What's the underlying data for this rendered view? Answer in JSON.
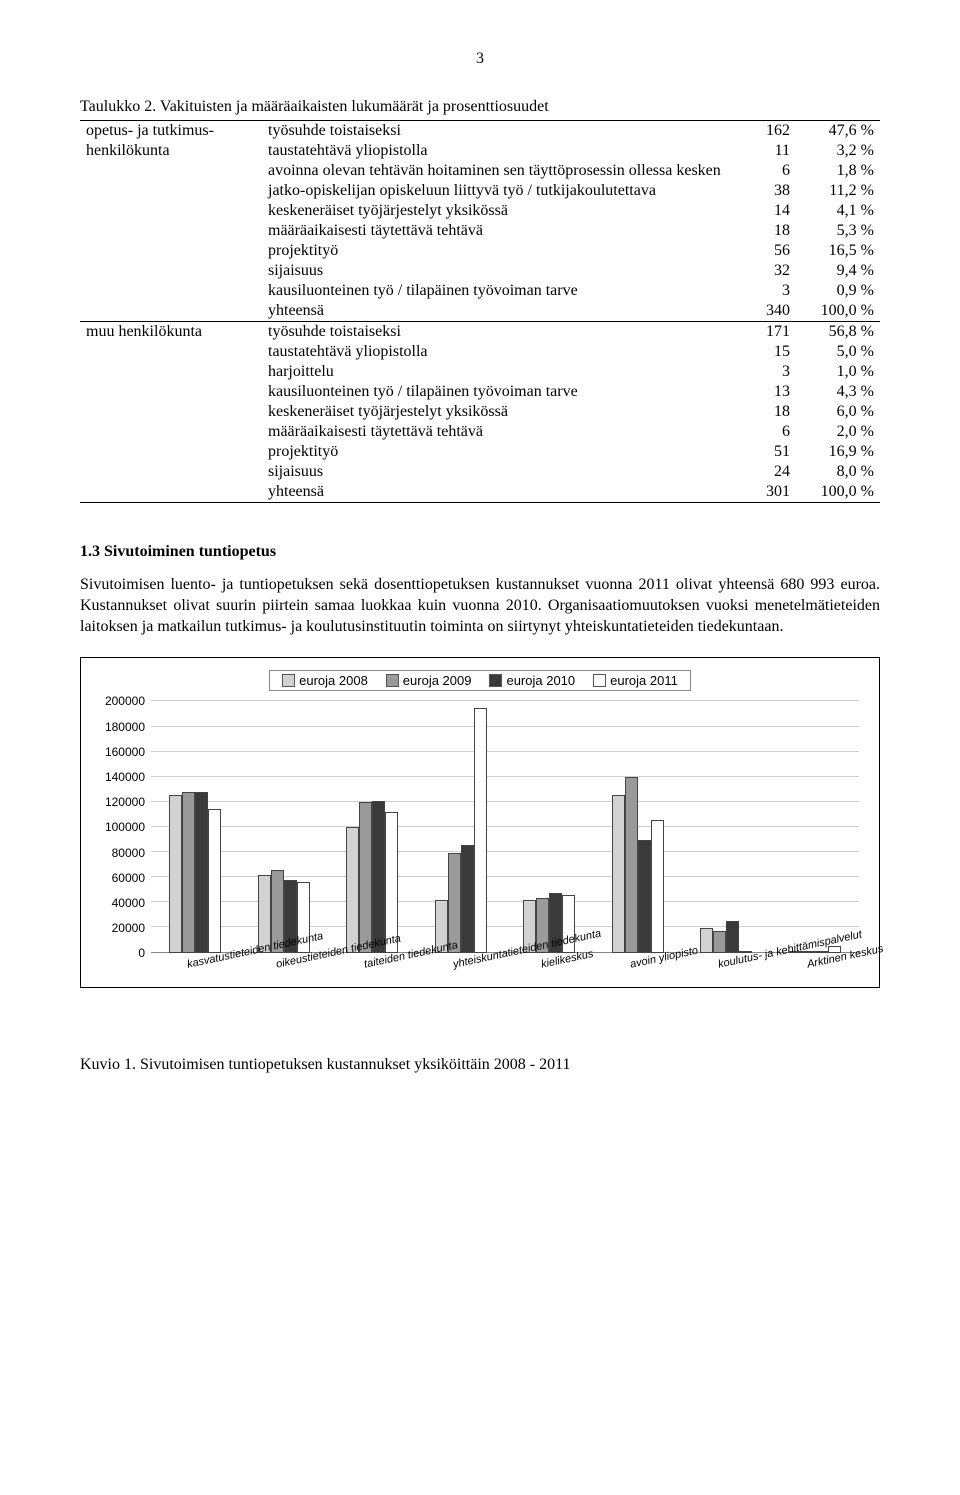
{
  "page_number": "3",
  "table_caption": "Taulukko 2. Vakituisten ja määräaikaisten lukumäärät ja prosenttiosuudet",
  "table": {
    "groups": [
      {
        "label_lines": [
          "opetus- ja tutkimus-",
          "henkilökunta"
        ],
        "rows": [
          {
            "label": "työsuhde toistaiseksi",
            "n": "162",
            "pct": "47,6 %"
          },
          {
            "label": "taustatehtävä yliopistolla",
            "n": "11",
            "pct": "3,2 %"
          },
          {
            "label": "avoinna olevan tehtävän hoitaminen sen täyttöprosessin ollessa kesken",
            "n": "6",
            "pct": "1,8 %"
          },
          {
            "label": "jatko-opiskelijan opiskeluun liittyvä työ / tutkijakoulutettava",
            "n": "38",
            "pct": "11,2 %"
          },
          {
            "label": "keskeneräiset työjärjestelyt yksikössä",
            "n": "14",
            "pct": "4,1 %"
          },
          {
            "label": "määräaikaisesti täytettävä tehtävä",
            "n": "18",
            "pct": "5,3 %"
          },
          {
            "label": "projektityö",
            "n": "56",
            "pct": "16,5 %"
          },
          {
            "label": "sijaisuus",
            "n": "32",
            "pct": "9,4 %"
          },
          {
            "label": "kausiluonteinen työ / tilapäinen työvoiman tarve",
            "n": "3",
            "pct": "0,9 %"
          },
          {
            "label": "yhteensä",
            "n": "340",
            "pct": "100,0 %"
          }
        ]
      },
      {
        "label_lines": [
          "muu henkilökunta"
        ],
        "rows": [
          {
            "label": "työsuhde toistaiseksi",
            "n": "171",
            "pct": "56,8 %"
          },
          {
            "label": "taustatehtävä yliopistolla",
            "n": "15",
            "pct": "5,0 %"
          },
          {
            "label": "harjoittelu",
            "n": "3",
            "pct": "1,0 %"
          },
          {
            "label": "kausiluonteinen työ / tilapäinen työvoiman tarve",
            "n": "13",
            "pct": "4,3 %"
          },
          {
            "label": "keskeneräiset työjärjestelyt yksikössä",
            "n": "18",
            "pct": "6,0 %"
          },
          {
            "label": "määräaikaisesti täytettävä tehtävä",
            "n": "6",
            "pct": "2,0 %"
          },
          {
            "label": "projektityö",
            "n": "51",
            "pct": "16,9 %"
          },
          {
            "label": "sijaisuus",
            "n": "24",
            "pct": "8,0 %"
          },
          {
            "label": "yhteensä",
            "n": "301",
            "pct": "100,0 %"
          }
        ]
      }
    ]
  },
  "section_heading": "1.3 Sivutoiminen tuntiopetus",
  "paragraph": "Sivutoimisen luento- ja tuntiopetuksen sekä dosenttiopetuksen kustannukset vuonna 2011 olivat yhteensä 680 993 euroa. Kustannukset olivat suurin piirtein samaa luokkaa kuin vuonna 2010. Organisaatiomuutoksen vuoksi menetelmätieteiden laitoksen ja matkailun tutkimus- ja koulutusinstituutin toiminta on siirtynyt yhteiskuntatieteiden tiedekuntaan.",
  "chart": {
    "type": "bar",
    "ymax": 200000,
    "ytick_step": 20000,
    "y_ticks": [
      "0",
      "20000",
      "40000",
      "60000",
      "80000",
      "100000",
      "120000",
      "140000",
      "160000",
      "180000",
      "200000"
    ],
    "series": [
      {
        "name": "euroja 2008",
        "color": "#d2d2d2"
      },
      {
        "name": "euroja 2009",
        "color": "#9a9a9a"
      },
      {
        "name": "euroja 2010",
        "color": "#3a3a3a"
      },
      {
        "name": "euroja 2011",
        "color": "#ffffff"
      }
    ],
    "categories": [
      {
        "label": "kasvatustieteiden tiedekunta",
        "values": [
          126000,
          128000,
          128000,
          115000
        ]
      },
      {
        "label": "oikeustieteiden tiedekunta",
        "values": [
          62000,
          66000,
          58000,
          57000
        ]
      },
      {
        "label": "taiteiden tiedekunta",
        "values": [
          100000,
          120000,
          121000,
          112000
        ]
      },
      {
        "label": "yhteiskuntatieteiden tiedekunta",
        "values": [
          42000,
          80000,
          86000,
          195000
        ]
      },
      {
        "label": "kielikeskus",
        "values": [
          42000,
          44000,
          48000,
          46000
        ]
      },
      {
        "label": "avoin yliopisto",
        "values": [
          126000,
          140000,
          90000,
          106000
        ]
      },
      {
        "label": "koulutus- ja kehittämispalvelut",
        "values": [
          20000,
          18000,
          26000,
          0
        ]
      },
      {
        "label": "Arktinen keskus",
        "values": [
          0,
          0,
          0,
          6000
        ]
      }
    ]
  },
  "figure_caption": "Kuvio 1. Sivutoimisen tuntiopetuksen kustannukset yksiköittäin 2008 - 2011"
}
